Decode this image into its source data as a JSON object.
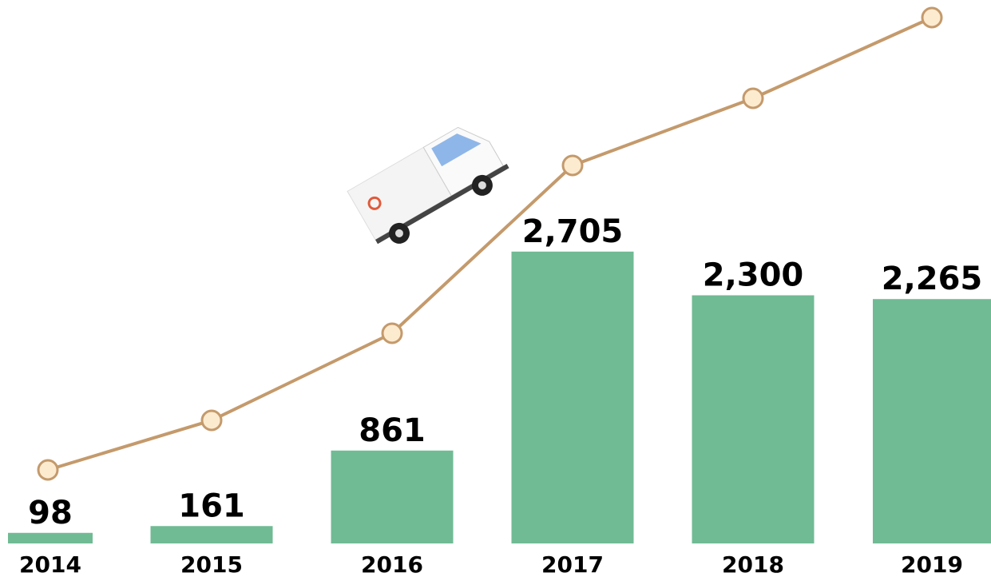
{
  "chart_data": {
    "type": "bar",
    "categories": [
      "2014",
      "2015",
      "2016",
      "2017",
      "2018",
      "2019"
    ],
    "values": [
      98,
      161,
      861,
      2705,
      2300,
      2265
    ],
    "value_labels": [
      "98",
      "161",
      "861",
      "2,705",
      "2,300",
      "2,265"
    ],
    "color": "#70bb94",
    "ylim": [
      0,
      3000
    ]
  }
}
